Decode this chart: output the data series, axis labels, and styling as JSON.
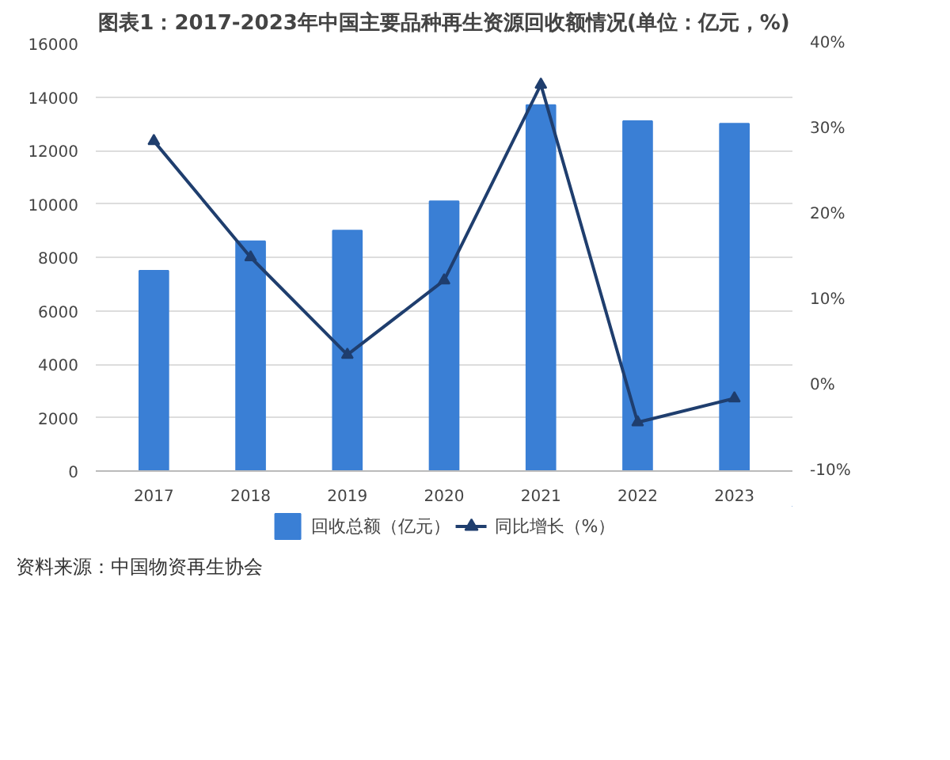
{
  "chart_data": {
    "type": "bar",
    "title": "图表1：2017-2023年中国主要品种再生资源回收额情况(单位：亿元，%)",
    "categories": [
      "2017",
      "2018",
      "2019",
      "2020",
      "2021",
      "2022",
      "2023"
    ],
    "series": [
      {
        "name": "回收总额（亿元）",
        "color": "#3a7fd5",
        "values": [
          7500,
          8600,
          9000,
          10100,
          13700,
          13100,
          13000
        ]
      },
      {
        "name": "同比增长（%）",
        "type": "line",
        "axis": "y2",
        "color": "#1f3e6e",
        "marker": "triangle",
        "values": [
          28.6,
          15.0,
          3.6,
          12.3,
          35.2,
          -4.3,
          -1.5
        ]
      }
    ],
    "ylim": [
      0,
      16000
    ],
    "yticks": [
      0,
      2000,
      4000,
      6000,
      8000,
      10000,
      12000,
      14000,
      16000
    ],
    "y2lim": [
      -10,
      40
    ],
    "y2ticks": [
      {
        "value": -10,
        "label": "-10%"
      },
      {
        "value": 0,
        "label": "0%"
      },
      {
        "value": 10,
        "label": "10%"
      },
      {
        "value": 20,
        "label": "20%"
      },
      {
        "value": 30,
        "label": "30%"
      },
      {
        "value": 40,
        "label": "40%"
      }
    ],
    "grid": "y",
    "legend": "bottom",
    "annotations": [
      "资料来源：中国物资再生协会"
    ]
  }
}
